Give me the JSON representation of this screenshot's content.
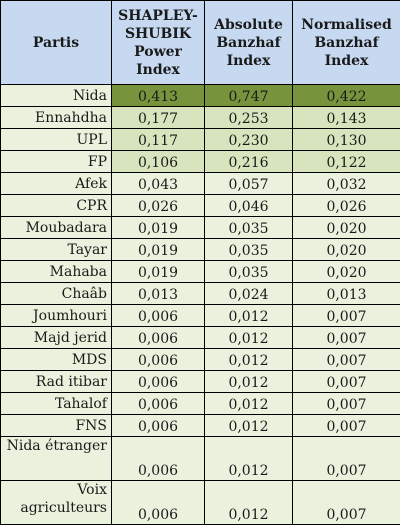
{
  "table": {
    "headers": {
      "party": "Partis",
      "shapley": "SHAPLEY-SHUBIK Power Index",
      "absolute": "Absolute Banzhaf Index",
      "normalised": "Normalised Banzhaf Index"
    },
    "rows": [
      {
        "party": "Nida",
        "shapley": "0,413",
        "absolute": "0,747",
        "normalised": "0,422",
        "shade": 0
      },
      {
        "party": "Ennahdha",
        "shapley": "0,177",
        "absolute": "0,253",
        "normalised": "0,143",
        "shade": 1
      },
      {
        "party": "UPL",
        "shapley": "0,117",
        "absolute": "0,230",
        "normalised": "0,130",
        "shade": 1
      },
      {
        "party": "FP",
        "shapley": "0,106",
        "absolute": "0,216",
        "normalised": "0,122",
        "shade": 1
      },
      {
        "party": "Afek",
        "shapley": "0,043",
        "absolute": "0,057",
        "normalised": "0,032",
        "shade": 2
      },
      {
        "party": "CPR",
        "shapley": "0,026",
        "absolute": "0,046",
        "normalised": "0,026",
        "shade": 2
      },
      {
        "party": "Moubadara",
        "shapley": "0,019",
        "absolute": "0,035",
        "normalised": "0,020",
        "shade": 2
      },
      {
        "party": "Tayar",
        "shapley": "0,019",
        "absolute": "0,035",
        "normalised": "0,020",
        "shade": 2
      },
      {
        "party": "Mahaba",
        "shapley": "0,019",
        "absolute": "0,035",
        "normalised": "0,020",
        "shade": 2
      },
      {
        "party": "Chaâb",
        "shapley": "0,013",
        "absolute": "0,024",
        "normalised": "0,013",
        "shade": 2
      },
      {
        "party": "Joumhouri",
        "shapley": "0,006",
        "absolute": "0,012",
        "normalised": "0,007",
        "shade": 2
      },
      {
        "party": "Majd jerid",
        "shapley": "0,006",
        "absolute": "0,012",
        "normalised": "0,007",
        "shade": 2
      },
      {
        "party": "MDS",
        "shapley": "0,006",
        "absolute": "0,012",
        "normalised": "0,007",
        "shade": 2
      },
      {
        "party": "Rad itibar",
        "shapley": "0,006",
        "absolute": "0,012",
        "normalised": "0,007",
        "shade": 2
      },
      {
        "party": "Tahalof",
        "shapley": "0,006",
        "absolute": "0,012",
        "normalised": "0,007",
        "shade": 2
      },
      {
        "party": "FNS",
        "shapley": "0,006",
        "absolute": "0,012",
        "normalised": "0,007",
        "shade": 2
      },
      {
        "party": "Nida étranger",
        "shapley": "0,006",
        "absolute": "0,012",
        "normalised": "0,007",
        "shade": 2,
        "tall": true
      },
      {
        "party": "Voix agriculteurs",
        "shapley": "0,006",
        "absolute": "0,012",
        "normalised": "0,007",
        "shade": 2,
        "tall": true
      }
    ]
  },
  "colors": {
    "header_bg": "#c6d9f1",
    "top_row_bg": "#77933c",
    "mid_rows_bg": "#d7e4bd",
    "light_rows_bg": "#eaf1dd",
    "border": "#000000"
  }
}
